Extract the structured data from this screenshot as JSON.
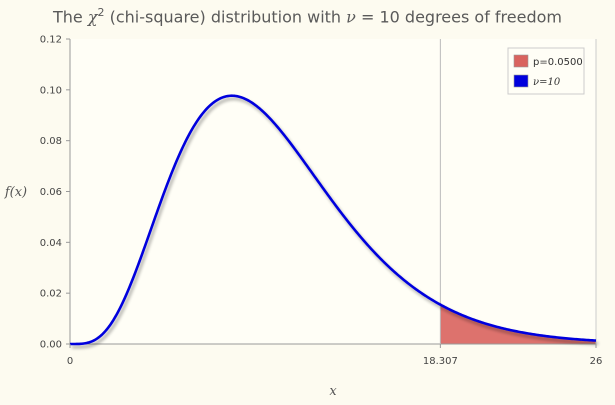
{
  "chart_data": {
    "type": "line",
    "title_prefix": "The ",
    "title_symbol": "χ",
    "title_exponent": "2",
    "title_mid": " (chi-square) distribution with ",
    "title_nu": "ν",
    "title_suffix": " = 10 degrees of freedom",
    "xlabel": "x",
    "ylabel": "f(x)",
    "xlim": [
      0,
      26
    ],
    "ylim": [
      0,
      0.12
    ],
    "degrees_of_freedom": 10,
    "critical_value": 18.307,
    "p_value": 0.05,
    "x_tick_labels": [
      "0",
      "18.307",
      "26"
    ],
    "y_tick_labels": [
      "0.00",
      "0.02",
      "0.04",
      "0.06",
      "0.08",
      "0.10",
      "0.12"
    ],
    "grid": false,
    "legend_position": "top-right",
    "series": [
      {
        "name": "p=0.0500",
        "kind": "shaded-area",
        "x_from": 18.307,
        "x_to": 26,
        "color": "#d9635e"
      },
      {
        "name": "ν=10",
        "kind": "density-curve",
        "color": "#0000dd"
      }
    ]
  },
  "colors": {
    "background": "#fdfbf0",
    "curve": "#0000dd",
    "shade": "#d9635e",
    "axis": "#555555"
  }
}
